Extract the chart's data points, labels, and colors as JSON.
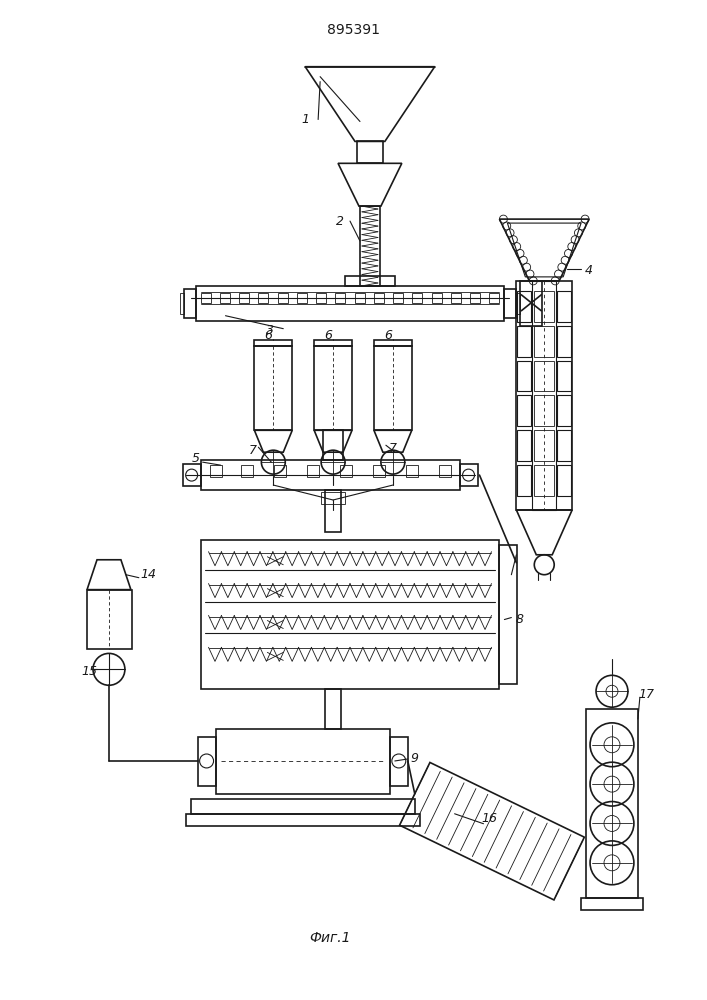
{
  "title": "895391",
  "caption": "Фиг.1",
  "bg_color": "#ffffff",
  "line_color": "#1a1a1a",
  "title_fontsize": 10,
  "caption_fontsize": 10
}
